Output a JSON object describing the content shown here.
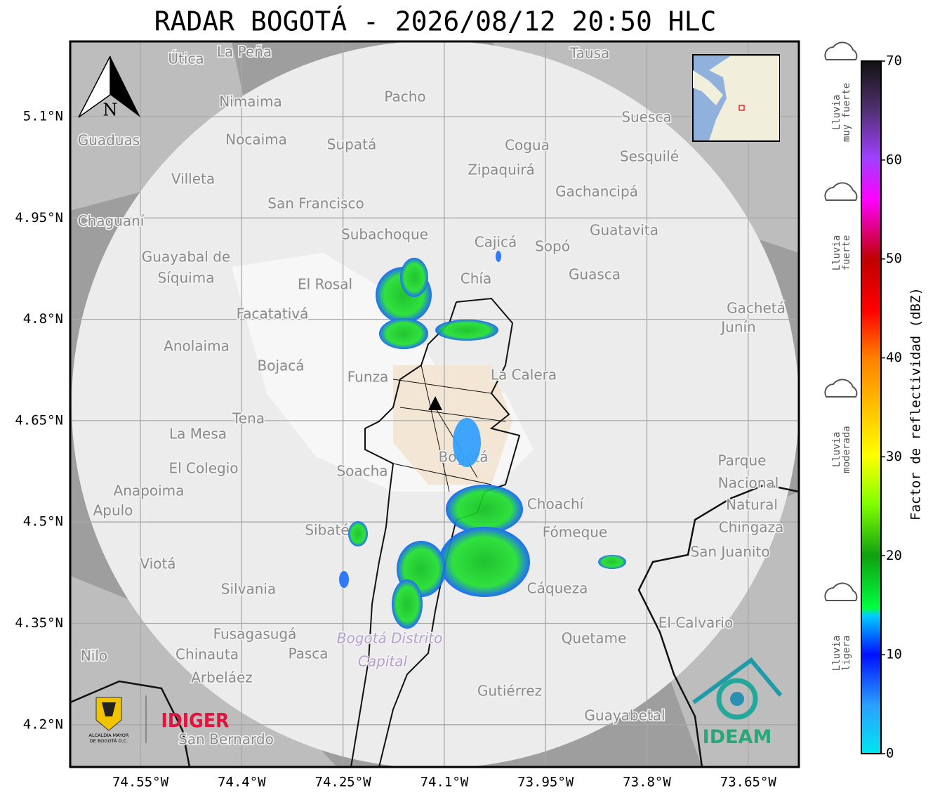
{
  "title": "RADAR BOGOTÁ - 2026/08/12 20:50 HLC",
  "map": {
    "lat_labels": [
      "5.1°N",
      "4.95°N",
      "4.8°N",
      "4.65°N",
      "4.5°N",
      "4.35°N",
      "4.2°N"
    ],
    "lon_labels": [
      "74.55°W",
      "74.4°W",
      "74.25°W",
      "74.1°W",
      "73.95°W",
      "73.8°W",
      "73.65°W"
    ],
    "compass": "N",
    "places": [
      "La Peña",
      "Útica",
      "Tausa",
      "Pacho",
      "Nimaima",
      "Suesca",
      "Guaduas",
      "Nocaima",
      "Supatá",
      "Cogua",
      "Sesquilé",
      "Zipaquirá",
      "Villeta",
      "Gachancipá",
      "San Francisco",
      "Chaguaní",
      "Guatavita",
      "Subachoque",
      "Cajicá",
      "Sopó",
      "Guayabal de",
      "Síquima",
      "Guasca",
      "El Rosal",
      "Chía",
      "Facatativá",
      "Gachetá",
      "Junín",
      "Anolaima",
      "Bojacá",
      "Funza",
      "La Calera",
      "Tena",
      "La Mesa",
      "Bogotá",
      "Soacha",
      "Parque",
      "Nacional",
      "Natural",
      "Chingaza",
      "El Colegio",
      "Anapoima",
      "Apulo",
      "Choachí",
      "Sibaté",
      "Fómeque",
      "San Juanito",
      "Viotá",
      "Silvania",
      "Cáqueza",
      "El Calvario",
      "Fusagasugá",
      "Quetame",
      "Chinauta",
      "Pasca",
      "Nilo",
      "Arbeláez",
      "Gutiérrez",
      "Guayabetal",
      "San Bernardo"
    ],
    "district": [
      "Bogotá Distrito",
      "Capital"
    ]
  },
  "colorbar": {
    "label": "Factor de reflectividad (dBZ)",
    "ticks": [
      0,
      10,
      20,
      30,
      40,
      50,
      60,
      70
    ],
    "categories": [
      [
        "Lluvia",
        "muy fuerte"
      ],
      [
        "Lluvia",
        "fuerte"
      ],
      [
        "Lluvia",
        "moderada"
      ],
      [
        "Lluvia",
        "ligera"
      ]
    ]
  },
  "logos": {
    "alcaldia": [
      "ALCALDÍA MAYOR",
      "DE BOGOTÁ D.C."
    ],
    "idiger": "IDIGER",
    "ideam": "IDEAM"
  }
}
